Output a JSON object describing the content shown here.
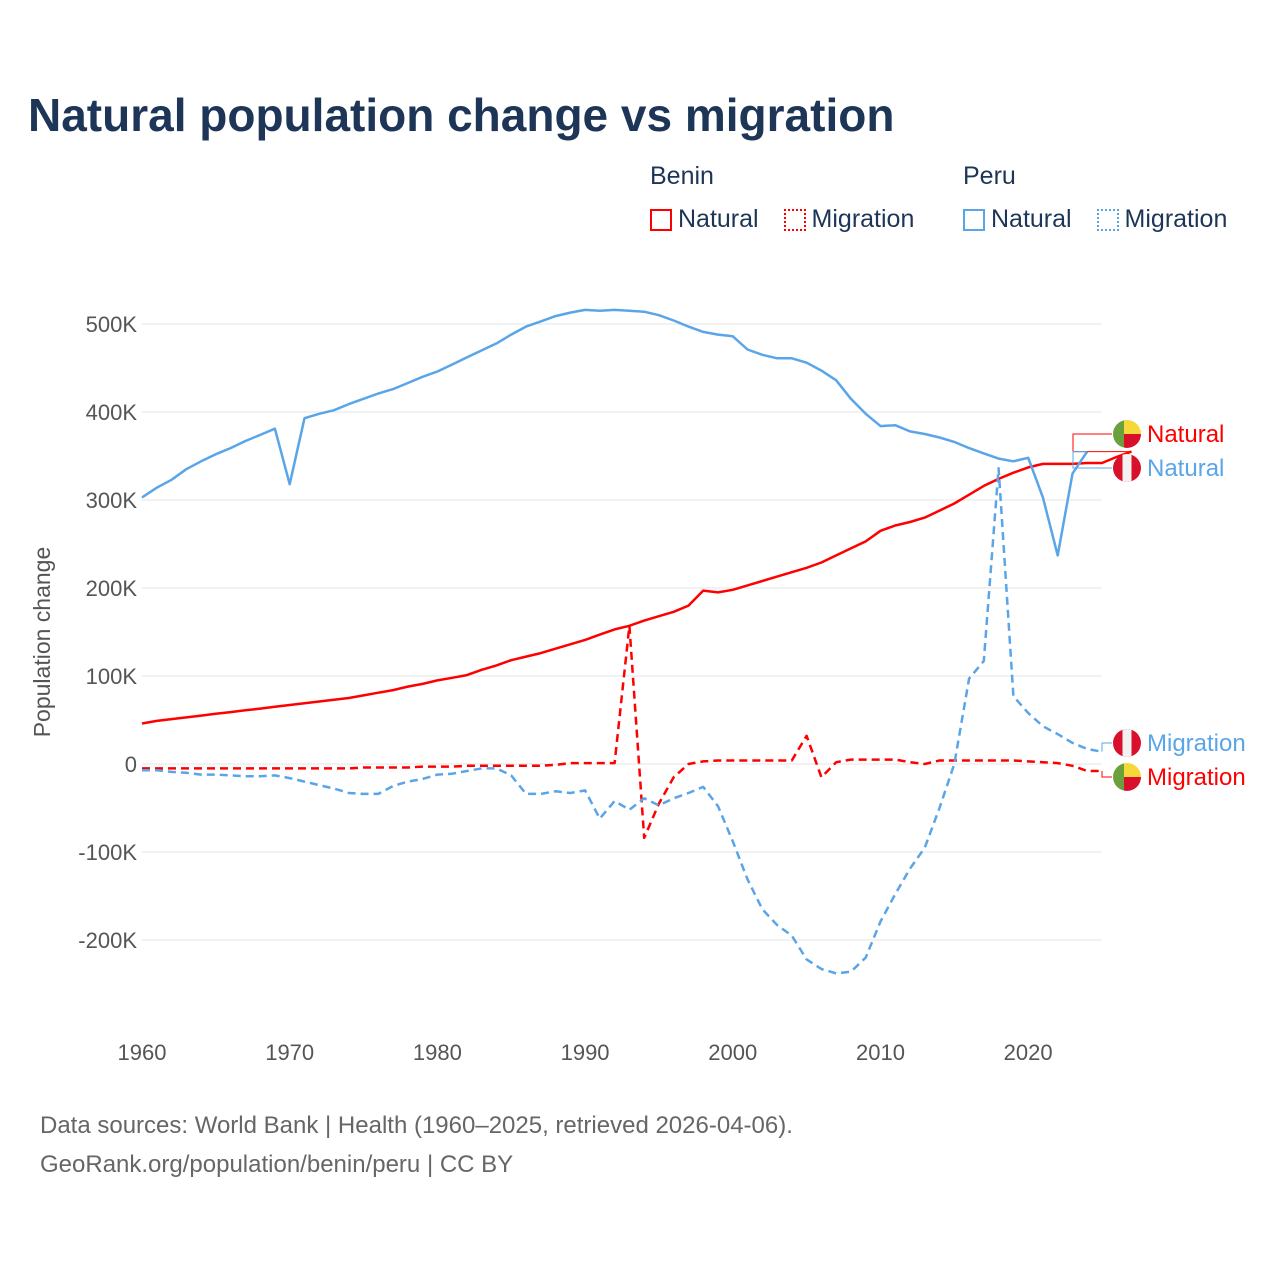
{
  "title": "Natural population change vs migration",
  "legend": {
    "groups": [
      {
        "name": "Benin",
        "color": "#ff0000",
        "items": [
          "Natural",
          "Migration"
        ]
      },
      {
        "name": "Peru",
        "color": "#5aa5e8",
        "items": [
          "Natural",
          "Migration"
        ]
      }
    ]
  },
  "footer": {
    "line1": "Data sources: World Bank | Health (1960–2025, retrieved 2026-04-06).",
    "line2": "GeoRank.org/population/benin/peru | CC BY"
  },
  "chart_data": {
    "type": "line",
    "title": "Natural population change vs migration",
    "xlabel": "",
    "ylabel": "Population change",
    "xlim": [
      1960,
      2025
    ],
    "ylim": [
      -270000,
      560000
    ],
    "x_ticks": [
      1960,
      1970,
      1980,
      1990,
      2000,
      2010,
      2020
    ],
    "x_tick_labels": [
      "1960",
      "1970",
      "1980",
      "1990",
      "2000",
      "2010",
      "2020"
    ],
    "y_ticks": [
      -200000,
      -100000,
      0,
      100000,
      200000,
      300000,
      400000,
      500000
    ],
    "y_tick_labels": [
      "-200K",
      "-100K",
      "0",
      "100K",
      "200K",
      "300K",
      "400K",
      "500K"
    ],
    "grid": true,
    "legend_position": "top-right",
    "start_year": 1960,
    "series": [
      {
        "name": "Benin Natural",
        "end_label": "Natural",
        "country": "Benin",
        "color": "#ff0000",
        "dash": false,
        "flag": "benin-flag",
        "values_k": [
          46,
          49,
          51,
          53,
          55,
          57,
          59,
          61,
          63,
          65,
          67,
          69,
          71,
          73,
          75,
          78,
          81,
          84,
          88,
          91,
          95,
          98,
          101,
          107,
          112,
          118,
          122,
          126,
          131,
          136,
          141,
          147,
          153,
          157,
          163,
          168,
          173,
          180,
          197,
          195,
          198,
          203,
          208,
          213,
          218,
          223,
          229,
          237,
          245,
          253,
          265,
          271,
          275,
          280,
          288,
          296,
          306,
          316,
          324,
          331,
          337,
          341,
          341,
          341,
          342,
          342,
          349,
          355
        ]
      },
      {
        "name": "Benin Migration",
        "end_label": "Migration",
        "country": "Benin",
        "color": "#ff0000",
        "dash": true,
        "flag": "benin-flag",
        "values_k": [
          -5,
          -5,
          -5,
          -5,
          -5,
          -5,
          -5,
          -5,
          -5,
          -5,
          -5,
          -5,
          -5,
          -5,
          -5,
          -4,
          -4,
          -4,
          -4,
          -3,
          -3,
          -3,
          -2,
          -2,
          -2,
          -2,
          -2,
          -2,
          -1,
          1,
          1,
          1,
          1,
          157,
          -84,
          -45,
          -15,
          0,
          3,
          4,
          4,
          4,
          4,
          4,
          4,
          32,
          -15,
          2,
          5,
          5,
          5,
          5,
          2,
          0,
          4,
          4,
          4,
          4,
          4,
          4,
          3,
          2,
          1,
          -2,
          -8,
          -8
        ]
      },
      {
        "name": "Peru Natural",
        "end_label": "Natural",
        "country": "Peru",
        "color": "#5aa5e8",
        "dash": false,
        "flag": "peru-flag",
        "values_k": [
          303,
          314,
          323,
          335,
          344,
          352,
          359,
          367,
          374,
          381,
          318,
          393,
          398,
          402,
          409,
          415,
          421,
          426,
          433,
          440,
          446,
          454,
          462,
          470,
          478,
          488,
          497,
          503,
          509,
          513,
          516,
          515,
          516,
          515,
          514,
          510,
          504,
          497,
          491,
          488,
          486,
          471,
          465,
          461,
          461,
          456,
          447,
          436,
          415,
          398,
          384,
          385,
          378,
          375,
          371,
          366,
          359,
          353,
          347,
          344,
          348,
          303,
          237,
          330,
          355
        ]
      },
      {
        "name": "Peru Migration",
        "end_label": "Migration",
        "country": "Peru",
        "color": "#5aa5e8",
        "dash": true,
        "flag": "peru-flag",
        "values_k": [
          -7,
          -7,
          -9,
          -10,
          -12,
          -12,
          -13,
          -14,
          -14,
          -13,
          -16,
          -20,
          -24,
          -28,
          -33,
          -34,
          -34,
          -25,
          -20,
          -17,
          -12,
          -11,
          -8,
          -5,
          -5,
          -13,
          -34,
          -34,
          -31,
          -33,
          -30,
          -62,
          -42,
          -52,
          -39,
          -47,
          -39,
          -33,
          -26,
          -48,
          -88,
          -131,
          -165,
          -183,
          -195,
          -222,
          -233,
          -238,
          -236,
          -220,
          -179,
          -148,
          -119,
          -95,
          -50,
          0,
          97,
          117,
          336,
          77,
          58,
          43,
          34,
          24,
          17,
          14
        ]
      }
    ]
  }
}
